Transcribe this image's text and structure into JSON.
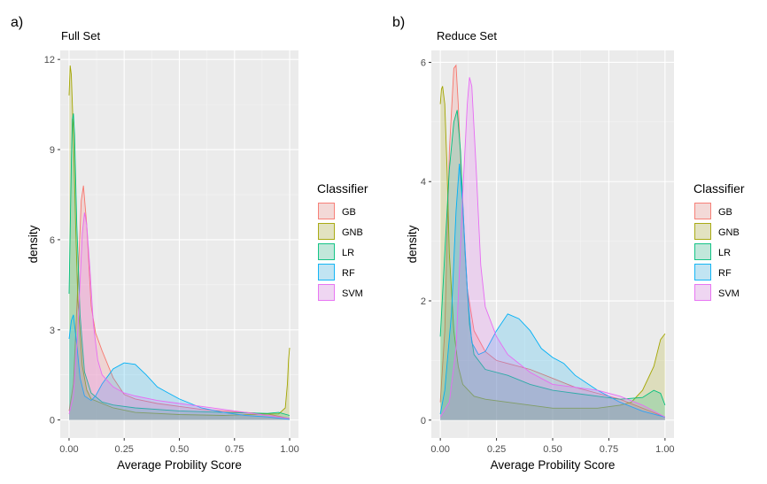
{
  "chart_data": [
    {
      "type": "area",
      "panel_tag": "a)",
      "title": "Full Set",
      "xlabel": "Average Probility Score",
      "ylabel": "density",
      "xlim": [
        -0.04,
        1.04
      ],
      "ylim": [
        -0.6,
        12.3
      ],
      "xticks": [
        0,
        0.25,
        0.5,
        0.75,
        1
      ],
      "xtick_labels": [
        "0.00",
        "0.25",
        "0.50",
        "0.75",
        "1.00"
      ],
      "yticks": [
        0,
        3,
        6,
        9,
        12
      ],
      "ytick_labels": [
        "0",
        "3",
        "6",
        "9",
        "12"
      ],
      "grid": true,
      "legend": {
        "title": "Classifier",
        "position": "right"
      },
      "series": [
        {
          "name": "GB",
          "color": "#F8766D",
          "points": [
            [
              0,
              0.3
            ],
            [
              0.02,
              1.2
            ],
            [
              0.04,
              4.5
            ],
            [
              0.055,
              7.3
            ],
            [
              0.065,
              7.8
            ],
            [
              0.08,
              6.5
            ],
            [
              0.1,
              3.8
            ],
            [
              0.12,
              2.9
            ],
            [
              0.15,
              2.3
            ],
            [
              0.2,
              1.4
            ],
            [
              0.25,
              0.85
            ],
            [
              0.3,
              0.7
            ],
            [
              0.4,
              0.55
            ],
            [
              0.5,
              0.45
            ],
            [
              0.6,
              0.35
            ],
            [
              0.7,
              0.3
            ],
            [
              0.8,
              0.25
            ],
            [
              0.9,
              0.2
            ],
            [
              1,
              0.05
            ]
          ]
        },
        {
          "name": "GNB",
          "color": "#A3A500",
          "points": [
            [
              0,
              10.8
            ],
            [
              0.005,
              11.8
            ],
            [
              0.01,
              11.5
            ],
            [
              0.02,
              9.5
            ],
            [
              0.03,
              6.5
            ],
            [
              0.04,
              4
            ],
            [
              0.06,
              1.8
            ],
            [
              0.08,
              1.0
            ],
            [
              0.1,
              0.7
            ],
            [
              0.2,
              0.4
            ],
            [
              0.3,
              0.25
            ],
            [
              0.5,
              0.18
            ],
            [
              0.7,
              0.15
            ],
            [
              0.9,
              0.2
            ],
            [
              0.95,
              0.2
            ],
            [
              0.98,
              0.4
            ],
            [
              0.99,
              1.2
            ],
            [
              0.995,
              2.0
            ],
            [
              1,
              2.4
            ]
          ]
        },
        {
          "name": "LR",
          "color": "#00BF7D",
          "points": [
            [
              0,
              4.2
            ],
            [
              0.01,
              8.5
            ],
            [
              0.015,
              10.0
            ],
            [
              0.02,
              10.2
            ],
            [
              0.025,
              9.5
            ],
            [
              0.035,
              6.5
            ],
            [
              0.05,
              3.5
            ],
            [
              0.07,
              1.6
            ],
            [
              0.1,
              0.9
            ],
            [
              0.15,
              0.6
            ],
            [
              0.2,
              0.5
            ],
            [
              0.3,
              0.4
            ],
            [
              0.5,
              0.3
            ],
            [
              0.7,
              0.25
            ],
            [
              0.9,
              0.22
            ],
            [
              0.95,
              0.25
            ],
            [
              1,
              0.15
            ]
          ]
        },
        {
          "name": "RF",
          "color": "#00B0F6",
          "points": [
            [
              0,
              2.7
            ],
            [
              0.01,
              3.3
            ],
            [
              0.02,
              3.5
            ],
            [
              0.035,
              2.5
            ],
            [
              0.05,
              1.4
            ],
            [
              0.07,
              0.8
            ],
            [
              0.1,
              0.65
            ],
            [
              0.12,
              0.8
            ],
            [
              0.15,
              1.2
            ],
            [
              0.2,
              1.7
            ],
            [
              0.25,
              1.9
            ],
            [
              0.3,
              1.85
            ],
            [
              0.35,
              1.5
            ],
            [
              0.4,
              1.1
            ],
            [
              0.45,
              0.9
            ],
            [
              0.5,
              0.7
            ],
            [
              0.6,
              0.4
            ],
            [
              0.7,
              0.25
            ],
            [
              0.8,
              0.15
            ],
            [
              0.9,
              0.1
            ],
            [
              1,
              0.02
            ]
          ]
        },
        {
          "name": "SVM",
          "color": "#E76BF3",
          "points": [
            [
              0,
              0.2
            ],
            [
              0.02,
              0.8
            ],
            [
              0.04,
              3.0
            ],
            [
              0.06,
              6.2
            ],
            [
              0.07,
              6.9
            ],
            [
              0.08,
              6.5
            ],
            [
              0.095,
              5.0
            ],
            [
              0.11,
              3.2
            ],
            [
              0.13,
              2.0
            ],
            [
              0.15,
              1.5
            ],
            [
              0.2,
              1.1
            ],
            [
              0.25,
              0.9
            ],
            [
              0.3,
              0.8
            ],
            [
              0.4,
              0.65
            ],
            [
              0.5,
              0.55
            ],
            [
              0.6,
              0.45
            ],
            [
              0.7,
              0.35
            ],
            [
              0.8,
              0.25
            ],
            [
              0.9,
              0.15
            ],
            [
              1,
              0.05
            ]
          ]
        }
      ]
    },
    {
      "type": "area",
      "panel_tag": "b)",
      "title": "Reduce Set",
      "xlabel": "Average Probility Score",
      "ylabel": "density",
      "xlim": [
        -0.04,
        1.04
      ],
      "ylim": [
        -0.3,
        6.2
      ],
      "xticks": [
        0,
        0.25,
        0.5,
        0.75,
        1
      ],
      "xtick_labels": [
        "0.00",
        "0.25",
        "0.50",
        "0.75",
        "1.00"
      ],
      "yticks": [
        0,
        2,
        4,
        6
      ],
      "ytick_labels": [
        "0",
        "2",
        "4",
        "6"
      ],
      "grid": true,
      "legend": {
        "title": "Classifier",
        "position": "right"
      },
      "series": [
        {
          "name": "GB",
          "color": "#F8766D",
          "points": [
            [
              0,
              0.3
            ],
            [
              0.02,
              1.5
            ],
            [
              0.04,
              4.5
            ],
            [
              0.06,
              5.9
            ],
            [
              0.07,
              5.95
            ],
            [
              0.08,
              5.3
            ],
            [
              0.1,
              3.5
            ],
            [
              0.12,
              2.2
            ],
            [
              0.15,
              1.5
            ],
            [
              0.2,
              1.15
            ],
            [
              0.25,
              1.0
            ],
            [
              0.3,
              0.95
            ],
            [
              0.4,
              0.85
            ],
            [
              0.5,
              0.7
            ],
            [
              0.6,
              0.55
            ],
            [
              0.7,
              0.45
            ],
            [
              0.8,
              0.35
            ],
            [
              0.9,
              0.2
            ],
            [
              1,
              0.05
            ]
          ]
        },
        {
          "name": "GNB",
          "color": "#A3A500",
          "points": [
            [
              0,
              5.3
            ],
            [
              0.005,
              5.55
            ],
            [
              0.01,
              5.6
            ],
            [
              0.02,
              5.3
            ],
            [
              0.03,
              4.2
            ],
            [
              0.04,
              2.8
            ],
            [
              0.06,
              1.5
            ],
            [
              0.08,
              0.9
            ],
            [
              0.1,
              0.6
            ],
            [
              0.15,
              0.4
            ],
            [
              0.2,
              0.35
            ],
            [
              0.3,
              0.3
            ],
            [
              0.4,
              0.25
            ],
            [
              0.5,
              0.2
            ],
            [
              0.6,
              0.2
            ],
            [
              0.7,
              0.2
            ],
            [
              0.8,
              0.25
            ],
            [
              0.85,
              0.3
            ],
            [
              0.9,
              0.5
            ],
            [
              0.95,
              0.9
            ],
            [
              0.98,
              1.35
            ],
            [
              1,
              1.45
            ]
          ]
        },
        {
          "name": "LR",
          "color": "#00BF7D",
          "points": [
            [
              0,
              1.4
            ],
            [
              0.02,
              2.8
            ],
            [
              0.04,
              4.2
            ],
            [
              0.06,
              5.0
            ],
            [
              0.075,
              5.2
            ],
            [
              0.09,
              4.5
            ],
            [
              0.11,
              2.8
            ],
            [
              0.13,
              1.6
            ],
            [
              0.15,
              1.1
            ],
            [
              0.2,
              0.85
            ],
            [
              0.3,
              0.75
            ],
            [
              0.4,
              0.6
            ],
            [
              0.5,
              0.5
            ],
            [
              0.6,
              0.45
            ],
            [
              0.7,
              0.4
            ],
            [
              0.8,
              0.35
            ],
            [
              0.9,
              0.38
            ],
            [
              0.95,
              0.5
            ],
            [
              0.98,
              0.45
            ],
            [
              1,
              0.25
            ]
          ]
        },
        {
          "name": "RF",
          "color": "#00B0F6",
          "points": [
            [
              0,
              0.1
            ],
            [
              0.02,
              0.5
            ],
            [
              0.05,
              1.8
            ],
            [
              0.07,
              3.5
            ],
            [
              0.085,
              4.3
            ],
            [
              0.1,
              3.6
            ],
            [
              0.12,
              2.2
            ],
            [
              0.14,
              1.3
            ],
            [
              0.17,
              1.1
            ],
            [
              0.2,
              1.15
            ],
            [
              0.25,
              1.5
            ],
            [
              0.3,
              1.78
            ],
            [
              0.35,
              1.7
            ],
            [
              0.4,
              1.5
            ],
            [
              0.45,
              1.2
            ],
            [
              0.5,
              1.05
            ],
            [
              0.55,
              0.95
            ],
            [
              0.6,
              0.75
            ],
            [
              0.7,
              0.5
            ],
            [
              0.8,
              0.3
            ],
            [
              0.9,
              0.15
            ],
            [
              1,
              0.05
            ]
          ]
        },
        {
          "name": "SVM",
          "color": "#E76BF3",
          "points": [
            [
              0,
              0.05
            ],
            [
              0.04,
              0.3
            ],
            [
              0.07,
              1.2
            ],
            [
              0.1,
              3.8
            ],
            [
              0.12,
              5.3
            ],
            [
              0.13,
              5.75
            ],
            [
              0.14,
              5.6
            ],
            [
              0.16,
              4.2
            ],
            [
              0.18,
              2.6
            ],
            [
              0.2,
              1.9
            ],
            [
              0.25,
              1.4
            ],
            [
              0.3,
              1.1
            ],
            [
              0.4,
              0.8
            ],
            [
              0.5,
              0.6
            ],
            [
              0.6,
              0.55
            ],
            [
              0.7,
              0.5
            ],
            [
              0.8,
              0.4
            ],
            [
              0.9,
              0.25
            ],
            [
              1,
              0.05
            ]
          ]
        }
      ]
    }
  ]
}
